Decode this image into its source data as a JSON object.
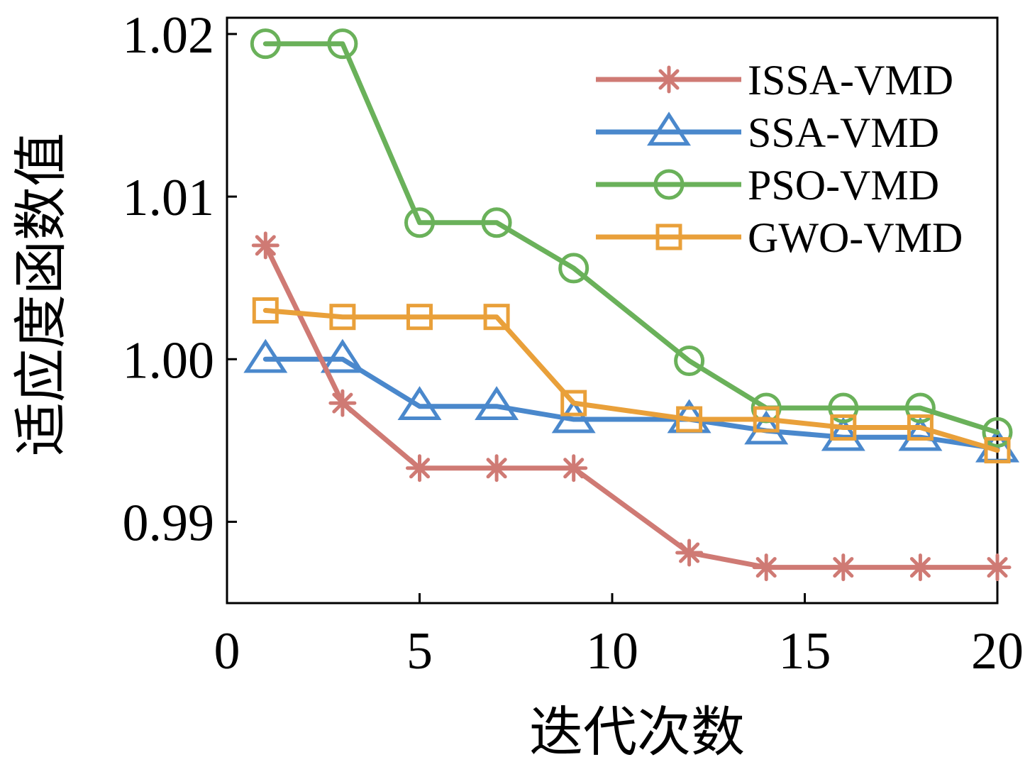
{
  "chart_data": {
    "type": "line",
    "title": "",
    "xlabel": "迭代次数",
    "ylabel": "适应度函数值",
    "xlim": [
      0,
      20
    ],
    "ylim": [
      0.985,
      1.021
    ],
    "xticks": [
      0,
      5,
      10,
      15,
      20
    ],
    "xtick_labels": [
      "0",
      "5",
      "10",
      "15",
      "20"
    ],
    "yticks": [
      0.99,
      1.0,
      1.01,
      1.02
    ],
    "ytick_labels": [
      "0.99",
      "1.00",
      "1.01",
      "1.02"
    ],
    "grid": false,
    "legend_position": "top-right",
    "x": [
      1,
      3,
      5,
      7,
      9,
      12,
      14,
      16,
      18,
      20
    ],
    "series": [
      {
        "name": "ISSA-VMD",
        "color": "#cf7a74",
        "marker": "asterisk",
        "values": [
          1.007,
          0.9973,
          0.9933,
          0.9933,
          0.9933,
          0.9881,
          0.9872,
          0.9872,
          0.9872,
          0.9872
        ]
      },
      {
        "name": "SSA-VMD",
        "color": "#4a88cc",
        "marker": "triangle",
        "values": [
          1.0,
          1.0,
          0.9971,
          0.9971,
          0.9963,
          0.9963,
          0.9956,
          0.9952,
          0.9952,
          0.9945
        ]
      },
      {
        "name": "PSO-VMD",
        "color": "#6ab15a",
        "marker": "circle",
        "values": [
          1.0194,
          1.0194,
          1.0084,
          1.0084,
          1.0056,
          0.9999,
          0.997,
          0.997,
          0.997,
          0.9955
        ]
      },
      {
        "name": "GWO-VMD",
        "color": "#e9a03a",
        "marker": "square",
        "values": [
          1.003,
          1.0026,
          1.0026,
          1.0026,
          0.9973,
          0.9963,
          0.9963,
          0.9958,
          0.9958,
          0.9944
        ]
      }
    ]
  }
}
